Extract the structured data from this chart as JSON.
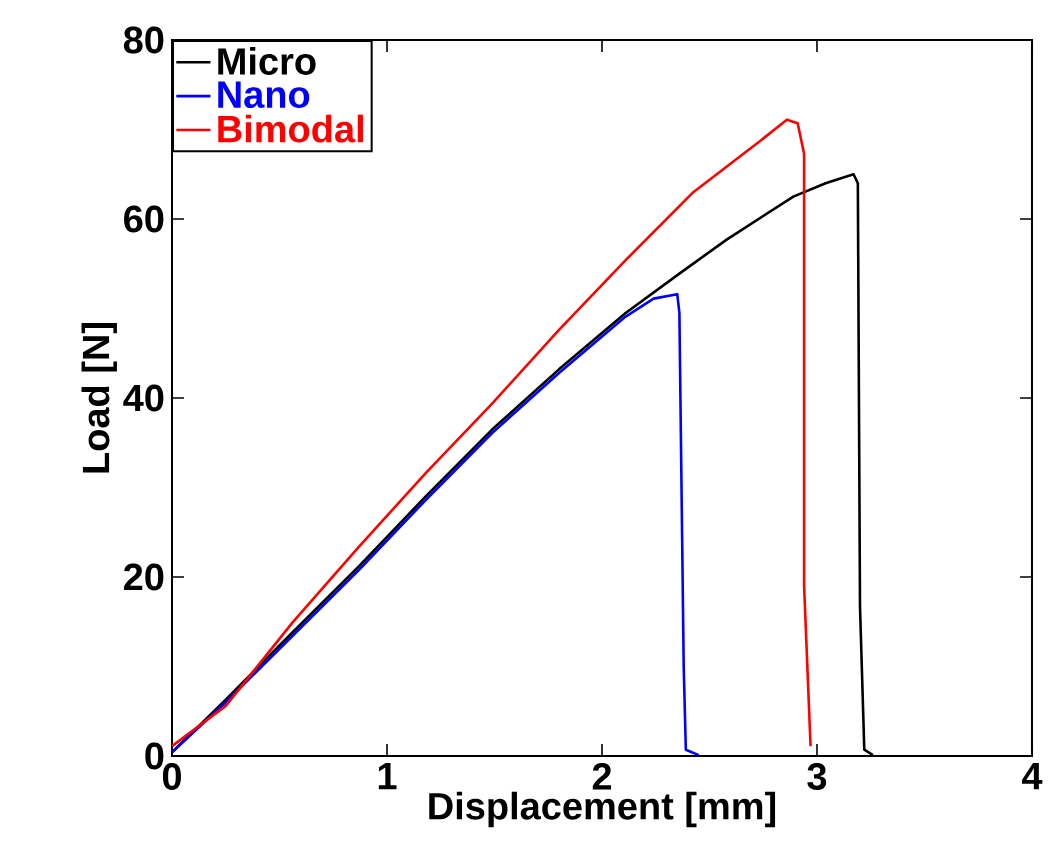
{
  "chart_data": {
    "type": "line",
    "xlabel": "Displacement [mm]",
    "ylabel": "Load [N]",
    "xlim": [
      0,
      4
    ],
    "ylim": [
      0,
      80
    ],
    "xticks": [
      0,
      1,
      2,
      3,
      4
    ],
    "yticks": [
      0,
      20,
      40,
      60,
      80
    ],
    "grid": false,
    "legend": "top left",
    "marker": "none",
    "line_style": "solid",
    "series": [
      {
        "name": "Micro",
        "color": "#000000",
        "x": [
          0,
          0.25,
          0.56,
          0.87,
          1.18,
          1.49,
          1.8,
          2.11,
          2.36,
          2.58,
          2.89,
          3.04,
          3.17,
          3.19,
          3.2,
          3.22,
          3.26
        ],
        "values": [
          0.4,
          6.3,
          13.8,
          21.2,
          29,
          36.5,
          43.2,
          49.5,
          53.9,
          57.7,
          62.5,
          64,
          65,
          64,
          16.7,
          0.7,
          0.1
        ]
      },
      {
        "name": "Nano",
        "color": "#0000ff",
        "x": [
          0,
          0.25,
          0.56,
          0.87,
          1.18,
          1.49,
          1.8,
          2.11,
          2.24,
          2.35,
          2.36,
          2.38,
          2.39,
          2.45
        ],
        "values": [
          0.4,
          6,
          13.4,
          20.8,
          28.6,
          36.1,
          42.8,
          49.1,
          51.1,
          51.6,
          49.5,
          10,
          0.7,
          0.1
        ]
      },
      {
        "name": "Bimodal",
        "color": "#ff0000",
        "x": [
          0,
          0.25,
          0.56,
          0.87,
          1.18,
          1.49,
          1.8,
          2.11,
          2.42,
          2.74,
          2.86,
          2.91,
          2.94,
          2.94,
          2.97
        ],
        "values": [
          1.1,
          5.6,
          14.9,
          23.4,
          31.6,
          39.4,
          47.6,
          55.4,
          62.9,
          68.8,
          71.1,
          70.7,
          67.3,
          19,
          1.1
        ]
      }
    ]
  }
}
